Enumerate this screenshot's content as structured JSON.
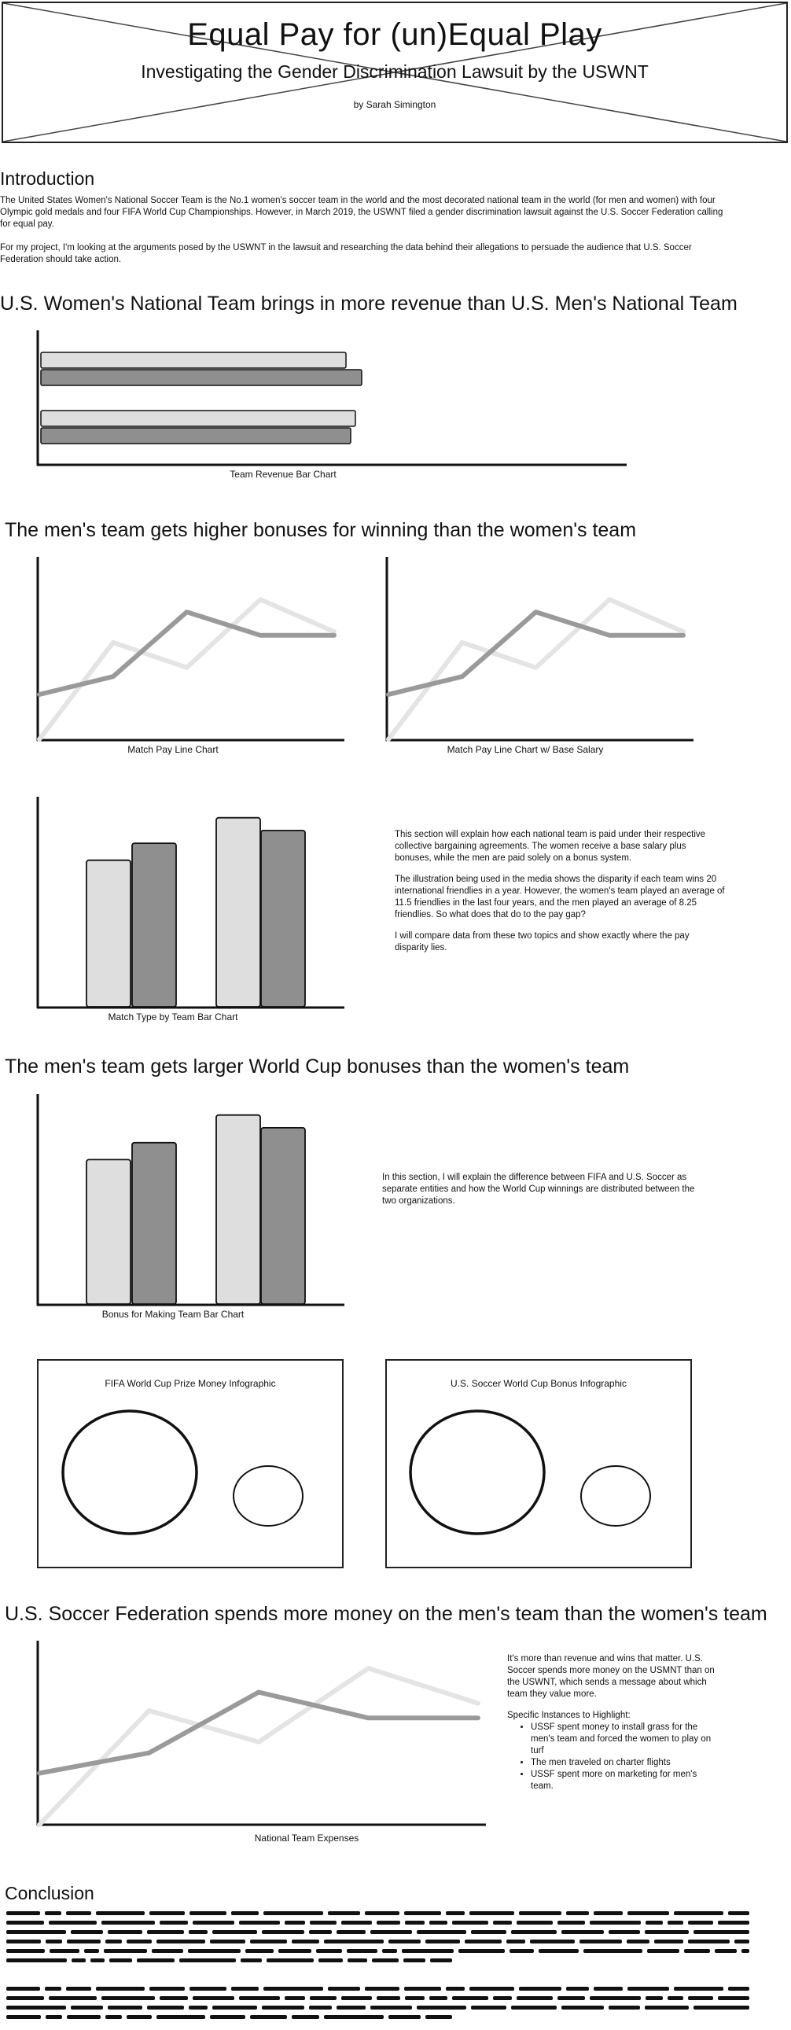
{
  "header": {
    "title": "Equal Pay for (un)Equal Play",
    "subtitle": "Investigating the Gender Discrimination Lawsuit by the USWNT",
    "byline": "by Sarah Simington"
  },
  "intro": {
    "heading": "Introduction",
    "p1": "The United States Women's National Soccer Team is the No.1 women's soccer team in the world and the most decorated national team in the world (for men and women) with four Olympic gold medals and four FIFA World Cup Championships. However, in March 2019, the USWNT filed a gender discrimination lawsuit against the U.S. Soccer Federation calling for equal pay.",
    "p2": "For my project, I'm looking at the arguments posed by the USWNT in the lawsuit and researching the data behind their allegations to persuade the audience that U.S. Soccer Federation should take action."
  },
  "section1": {
    "heading": "U.S. Women's National Team brings in more revenue than U.S. Men's National Team",
    "caption": "Team Revenue Bar Chart"
  },
  "section2": {
    "heading": "The men's team gets higher bonuses for winning than the women's team",
    "caption_a": "Match Pay Line Chart",
    "caption_b": "Match Pay Line Chart w/ Base Salary",
    "caption_c": "Match Type by Team Bar Chart",
    "text1": "This section will explain how each national team is paid under their respective collective bargaining agreements. The women receive a base salary plus bonuses, while the men are paid solely on a bonus system.",
    "text2": "The illustration being used in the media shows the disparity if each team wins 20 international friendlies in a year. However, the women's team played an average of 11.5 friendlies in the last four years, and the men played an average of 8.25 friendlies. So what does that do to the pay gap?",
    "text3": "I will compare data from these two topics and show exactly where the pay disparity lies."
  },
  "section3": {
    "heading": "The men's team gets larger World Cup bonuses than the women's team",
    "caption": "Bonus for Making Team Bar Chart",
    "text": "In this section, I will explain the difference between FIFA and U.S. Soccer as separate entities and how the World Cup winnings are distributed between the two organizations.",
    "info_a": "FIFA World Cup Prize Money Infographic",
    "info_b": "U.S. Soccer World Cup Bonus Infographic"
  },
  "section4": {
    "heading": "U.S. Soccer Federation spends more money on the men's team than the women's team",
    "caption": "National Team Expenses",
    "text": "It's more than revenue and wins that matter. U.S. Soccer spends more money on the USMNT than on the USWNT, which sends a message about which team they value more.",
    "list_title": "Specific Instances to Highlight:",
    "items": [
      "USSF spent money to install grass for the men's team and forced the women to play on turf",
      "The men traveled on charter flights",
      "USSF spent more on marketing for men's team."
    ]
  },
  "conclusion": {
    "heading": "Conclusion"
  },
  "colors": {
    "light_bar": "#dedede",
    "dark_bar": "#8f8f8f",
    "light_line": "#e4e4e4",
    "dark_line": "#9a9a9a",
    "ink": "#111111"
  },
  "chart_data": [
    {
      "type": "bar",
      "orientation": "horizontal",
      "caption": "Team Revenue Bar Chart",
      "categories": [
        "",
        ""
      ],
      "series": [
        {
          "values": [
            388,
            400
          ]
        },
        {
          "values": [
            408,
            394
          ]
        }
      ]
    },
    {
      "type": "line",
      "caption": "Match Pay Line Chart",
      "x": [
        0,
        1,
        2,
        3,
        4
      ],
      "series": [
        {
          "values": [
            0,
            54,
            40,
            78,
            60
          ]
        },
        {
          "values": [
            25,
            35,
            71,
            58,
            58
          ]
        }
      ]
    },
    {
      "type": "line",
      "caption": "Match Pay Line Chart w/ Base Salary",
      "x": [
        0,
        1,
        2,
        3,
        4
      ],
      "series": [
        {
          "values": [
            0,
            54,
            40,
            78,
            60
          ]
        },
        {
          "values": [
            25,
            35,
            71,
            58,
            58
          ]
        }
      ]
    },
    {
      "type": "bar",
      "caption": "Match Type by Team Bar Chart",
      "categories": [
        "",
        ""
      ],
      "series": [
        {
          "values": [
            69,
            89
          ]
        },
        {
          "values": [
            77,
            83
          ]
        }
      ]
    },
    {
      "type": "bar",
      "caption": "Bonus for Making Team Bar Chart",
      "categories": [
        "",
        ""
      ],
      "series": [
        {
          "values": [
            68,
            89
          ]
        },
        {
          "values": [
            76,
            83
          ]
        }
      ]
    },
    {
      "type": "line",
      "caption": "National Team Expenses",
      "x": [
        0,
        1,
        2,
        3,
        4
      ],
      "series": [
        {
          "values": [
            0,
            62,
            45,
            85,
            66
          ]
        },
        {
          "values": [
            28,
            39,
            72,
            58,
            58
          ]
        }
      ]
    }
  ]
}
